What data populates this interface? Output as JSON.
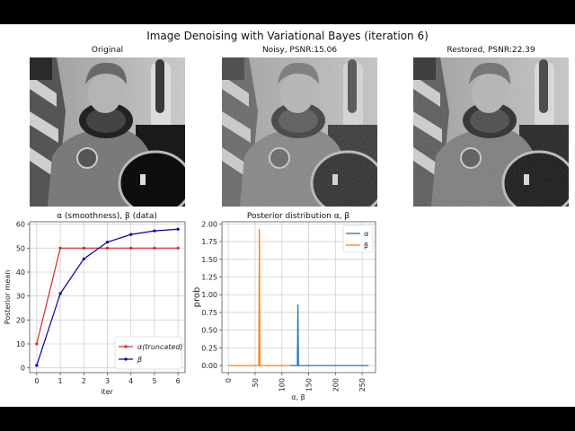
{
  "figure": {
    "suptitle": "Image Denoising with Variational Bayes (iteration 6)",
    "images": [
      {
        "title": "Original",
        "variant": "clean"
      },
      {
        "title": "Noisy, PSNR:15.06",
        "variant": "noisy"
      },
      {
        "title": "Restored, PSNR:22.39",
        "variant": "restored"
      }
    ]
  },
  "chart_data": [
    {
      "type": "line",
      "title": "α (smoothness), β (data)",
      "xlabel": "iter",
      "ylabel": "Posterior mean",
      "x": [
        0,
        1,
        2,
        3,
        4,
        5,
        6
      ],
      "xticks": [
        "0",
        "1",
        "2",
        "3",
        "4",
        "5",
        "6"
      ],
      "yticks": [
        "0",
        "10",
        "20",
        "30",
        "40",
        "50",
        "60"
      ],
      "xlim": [
        -0.3,
        6.3
      ],
      "ylim": [
        -2,
        61
      ],
      "grid": true,
      "legend_position": "lower right",
      "series": [
        {
          "name": "α(truncated)",
          "color": "#d62728",
          "marker": "dot",
          "values": [
            10,
            50,
            50,
            50,
            50,
            50,
            50
          ]
        },
        {
          "name": "β",
          "color": "#0000a0",
          "marker": "dot",
          "values": [
            1,
            31,
            45.5,
            52.5,
            55.7,
            57.2,
            57.9
          ]
        }
      ]
    },
    {
      "type": "line",
      "title": "Posterior distribution α, β",
      "xlabel": "α, β",
      "ylabel": "prob",
      "xticks": [
        "0",
        "50",
        "100",
        "150",
        "200",
        "250"
      ],
      "yticks": [
        "0.00",
        "0.25",
        "0.50",
        "0.75",
        "1.00",
        "1.25",
        "1.50",
        "1.75",
        "2.00"
      ],
      "xlim": [
        -12,
        275
      ],
      "ylim": [
        -0.1,
        2.03
      ],
      "grid": true,
      "legend_position": "upper right",
      "series": [
        {
          "name": "α",
          "color": "#1f77b4",
          "range": [
            115,
            262
          ],
          "peak_x": 130,
          "peak_y": 0.86
        },
        {
          "name": "β",
          "color": "#ff7f0e",
          "range": [
            0,
            115
          ],
          "peak_x": 58,
          "peak_y": 1.93
        }
      ]
    }
  ]
}
